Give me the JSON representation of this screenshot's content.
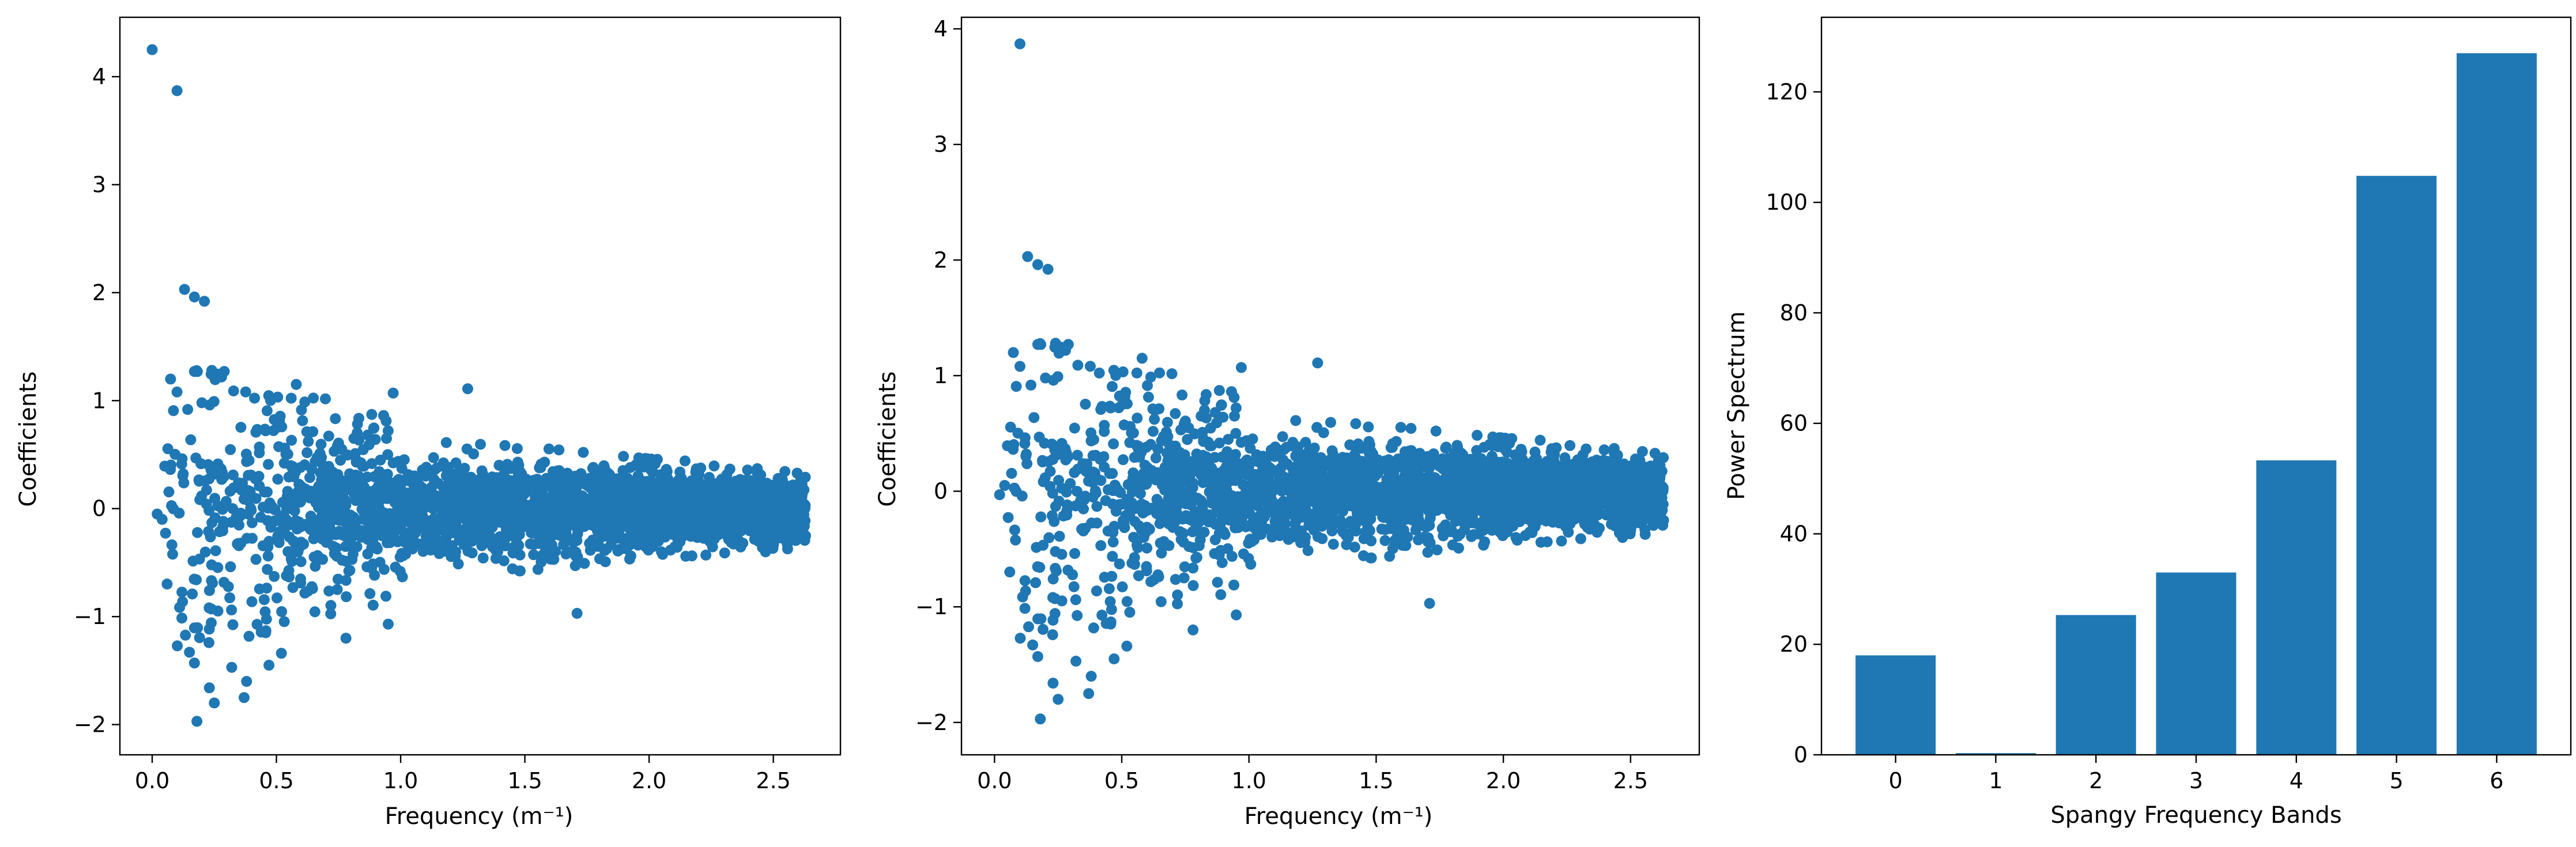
{
  "chart_data": [
    {
      "type": "scatter",
      "xlabel": "Frequency (m⁻¹)",
      "ylabel": "Coefficients",
      "xlim": [
        -0.13,
        2.77
      ],
      "ylim": [
        -2.28,
        4.55
      ],
      "xticks": [
        0.0,
        0.5,
        1.0,
        1.5,
        2.0,
        2.5
      ],
      "xtick_labels": [
        "0.0",
        "0.5",
        "1.0",
        "1.5",
        "2.0",
        "2.5"
      ],
      "yticks": [
        -2,
        -1,
        0,
        1,
        2,
        3,
        4
      ],
      "ytick_labels": [
        "−2",
        "−1",
        "0",
        "1",
        "2",
        "3",
        "4"
      ],
      "color": "#1f77b4",
      "grid": false,
      "outliers": [
        {
          "x": 0.0,
          "y": 4.25
        },
        {
          "x": 0.1,
          "y": 3.87
        },
        {
          "x": 0.13,
          "y": 2.03
        },
        {
          "x": 0.17,
          "y": 1.96
        },
        {
          "x": 0.21,
          "y": 1.92
        },
        {
          "x": 0.1,
          "y": 1.08
        },
        {
          "x": 0.17,
          "y": 1.27
        },
        {
          "x": 0.29,
          "y": 1.27
        },
        {
          "x": 0.2,
          "y": 0.98
        },
        {
          "x": 0.15,
          "y": -1.33
        },
        {
          "x": 0.17,
          "y": -1.43
        },
        {
          "x": 0.18,
          "y": -1.97
        },
        {
          "x": 0.23,
          "y": -1.66
        },
        {
          "x": 0.25,
          "y": -1.8
        },
        {
          "x": 0.32,
          "y": -1.47
        },
        {
          "x": 0.37,
          "y": -1.75
        },
        {
          "x": 0.38,
          "y": -1.6
        },
        {
          "x": 0.47,
          "y": -1.45
        },
        {
          "x": 0.52,
          "y": -1.34
        },
        {
          "x": 0.04,
          "y": -0.1
        },
        {
          "x": 0.02,
          "y": -0.05
        },
        {
          "x": 0.58,
          "y": 1.15
        },
        {
          "x": 0.97,
          "y": 1.07
        },
        {
          "x": 1.27,
          "y": 1.11
        },
        {
          "x": 0.78,
          "y": -1.2
        },
        {
          "x": 0.95,
          "y": -1.07
        },
        {
          "x": 1.71,
          "y": -0.97
        }
      ],
      "cloud_envelope": [
        {
          "x": 0.05,
          "halfwidth": 0.1
        },
        {
          "x": 0.2,
          "halfwidth": 0.75
        },
        {
          "x": 0.5,
          "halfwidth": 0.75
        },
        {
          "x": 1.0,
          "halfwidth": 0.55
        },
        {
          "x": 1.5,
          "halfwidth": 0.5
        },
        {
          "x": 2.0,
          "halfwidth": 0.4
        },
        {
          "x": 2.63,
          "halfwidth": 0.33
        }
      ]
    },
    {
      "type": "scatter",
      "xlabel": "Frequency (m⁻¹)",
      "ylabel": "Coefficients",
      "xlim": [
        -0.13,
        2.77
      ],
      "ylim": [
        -2.28,
        4.1
      ],
      "xticks": [
        0.0,
        0.5,
        1.0,
        1.5,
        2.0,
        2.5
      ],
      "xtick_labels": [
        "0.0",
        "0.5",
        "1.0",
        "1.5",
        "2.0",
        "2.5"
      ],
      "yticks": [
        -2,
        -1,
        0,
        1,
        2,
        3,
        4
      ],
      "ytick_labels": [
        "−2",
        "−1",
        "0",
        "1",
        "2",
        "3",
        "4"
      ],
      "color": "#1f77b4",
      "grid": false,
      "outliers": [
        {
          "x": 0.1,
          "y": 3.87
        },
        {
          "x": 0.13,
          "y": 2.03
        },
        {
          "x": 0.17,
          "y": 1.96
        },
        {
          "x": 0.21,
          "y": 1.92
        },
        {
          "x": 0.1,
          "y": 1.08
        },
        {
          "x": 0.17,
          "y": 1.27
        },
        {
          "x": 0.29,
          "y": 1.27
        },
        {
          "x": 0.2,
          "y": 0.98
        },
        {
          "x": 0.15,
          "y": -1.33
        },
        {
          "x": 0.17,
          "y": -1.43
        },
        {
          "x": 0.18,
          "y": -1.97
        },
        {
          "x": 0.23,
          "y": -1.66
        },
        {
          "x": 0.25,
          "y": -1.8
        },
        {
          "x": 0.32,
          "y": -1.47
        },
        {
          "x": 0.37,
          "y": -1.75
        },
        {
          "x": 0.38,
          "y": -1.6
        },
        {
          "x": 0.47,
          "y": -1.45
        },
        {
          "x": 0.52,
          "y": -1.34
        },
        {
          "x": 0.04,
          "y": 0.05
        },
        {
          "x": 0.02,
          "y": -0.03
        },
        {
          "x": 0.58,
          "y": 1.15
        },
        {
          "x": 0.97,
          "y": 1.07
        },
        {
          "x": 1.27,
          "y": 1.11
        },
        {
          "x": 0.78,
          "y": -1.2
        },
        {
          "x": 0.95,
          "y": -1.07
        },
        {
          "x": 1.71,
          "y": -0.97
        }
      ],
      "cloud_envelope": [
        {
          "x": 0.05,
          "halfwidth": 0.1
        },
        {
          "x": 0.2,
          "halfwidth": 0.75
        },
        {
          "x": 0.5,
          "halfwidth": 0.75
        },
        {
          "x": 1.0,
          "halfwidth": 0.55
        },
        {
          "x": 1.5,
          "halfwidth": 0.5
        },
        {
          "x": 2.0,
          "halfwidth": 0.4
        },
        {
          "x": 2.63,
          "halfwidth": 0.33
        }
      ]
    },
    {
      "type": "bar",
      "xlabel": "Spangy Frequency Bands",
      "ylabel": "Power Spectrum",
      "categories": [
        "0",
        "1",
        "2",
        "3",
        "4",
        "5",
        "6"
      ],
      "values": [
        18.0,
        0.3,
        25.3,
        33.0,
        53.3,
        104.8,
        127.0
      ],
      "ylim": [
        0,
        133.5
      ],
      "yticks": [
        0,
        20,
        40,
        60,
        80,
        100,
        120
      ],
      "ytick_labels": [
        "0",
        "20",
        "40",
        "60",
        "80",
        "100",
        "120"
      ],
      "color": "#1f77b4",
      "grid": false
    }
  ]
}
